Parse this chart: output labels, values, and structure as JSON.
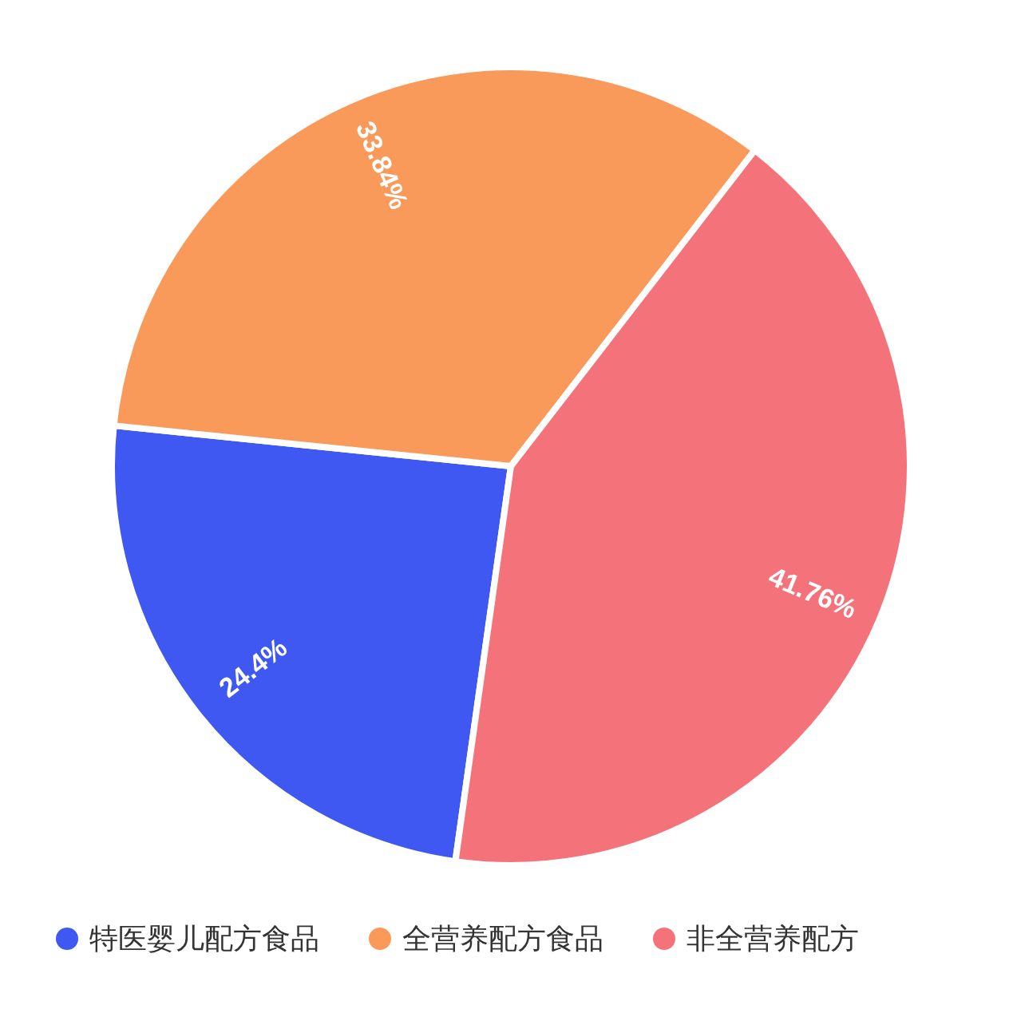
{
  "chart_data": {
    "type": "pie",
    "categories": [
      "特医婴儿配方食品",
      "全营养配方食品",
      "非全营养配方"
    ],
    "values": [
      24.4,
      33.84,
      41.76
    ],
    "colors": [
      "#3f58f2",
      "#f99a5b",
      "#f4737a"
    ],
    "value_labels": [
      "24.4%",
      "33.84%",
      "41.76%"
    ],
    "legend": "bottom"
  }
}
